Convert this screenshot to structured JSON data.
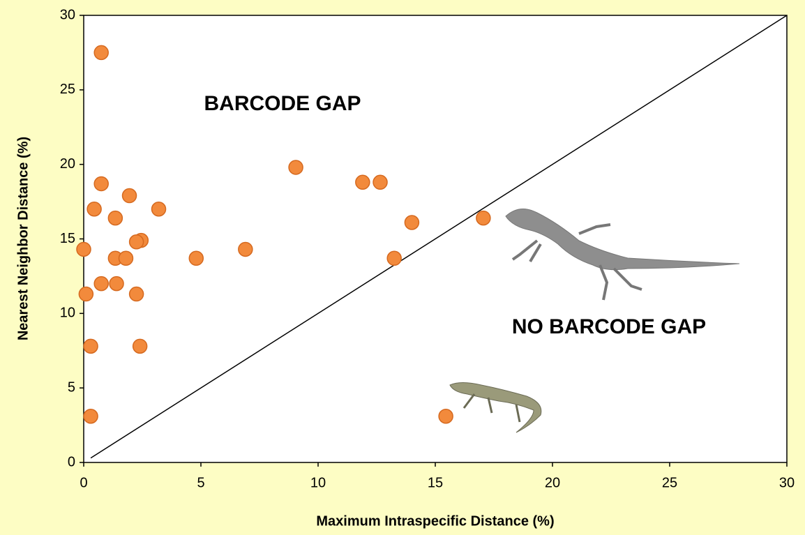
{
  "chart_data": {
    "type": "scatter",
    "x_label": "Maximum Intraspecific Distance (%)",
    "y_label": "Nearest Neighbor Distance (%)",
    "annotations": [
      "BARCODE GAP",
      "NO BARCODE GAP"
    ],
    "series": [
      {
        "color": "#f28a3c",
        "x": [
          0.75,
          0.75,
          0.45,
          1.95,
          3.2,
          1.35,
          0,
          2.45,
          2.25,
          1.35,
          1.8,
          4.8,
          6.9,
          0.75,
          1.4,
          0.1,
          2.25,
          0.3,
          2.4,
          0.3,
          9.05,
          11.9,
          12.65,
          14.0,
          13.25,
          17.05,
          15.45
        ],
        "values": [
          27.5,
          18.7,
          17.0,
          17.9,
          17.0,
          16.4,
          14.3,
          14.9,
          14.8,
          13.7,
          13.7,
          13.7,
          14.3,
          12.0,
          12.0,
          11.3,
          11.3,
          7.8,
          7.8,
          3.1,
          19.8,
          18.8,
          18.8,
          16.1,
          13.7,
          16.4,
          3.1
        ]
      }
    ],
    "reference_line": {
      "x": [
        0.3,
        30
      ],
      "values": [
        0.3,
        30
      ]
    },
    "xlim": [
      0,
      30
    ],
    "ylim": [
      0,
      30
    ],
    "xticks": [
      0,
      5,
      10,
      15,
      20,
      25,
      30
    ],
    "yticks": [
      0,
      5,
      10,
      15,
      20,
      25,
      30
    ]
  }
}
